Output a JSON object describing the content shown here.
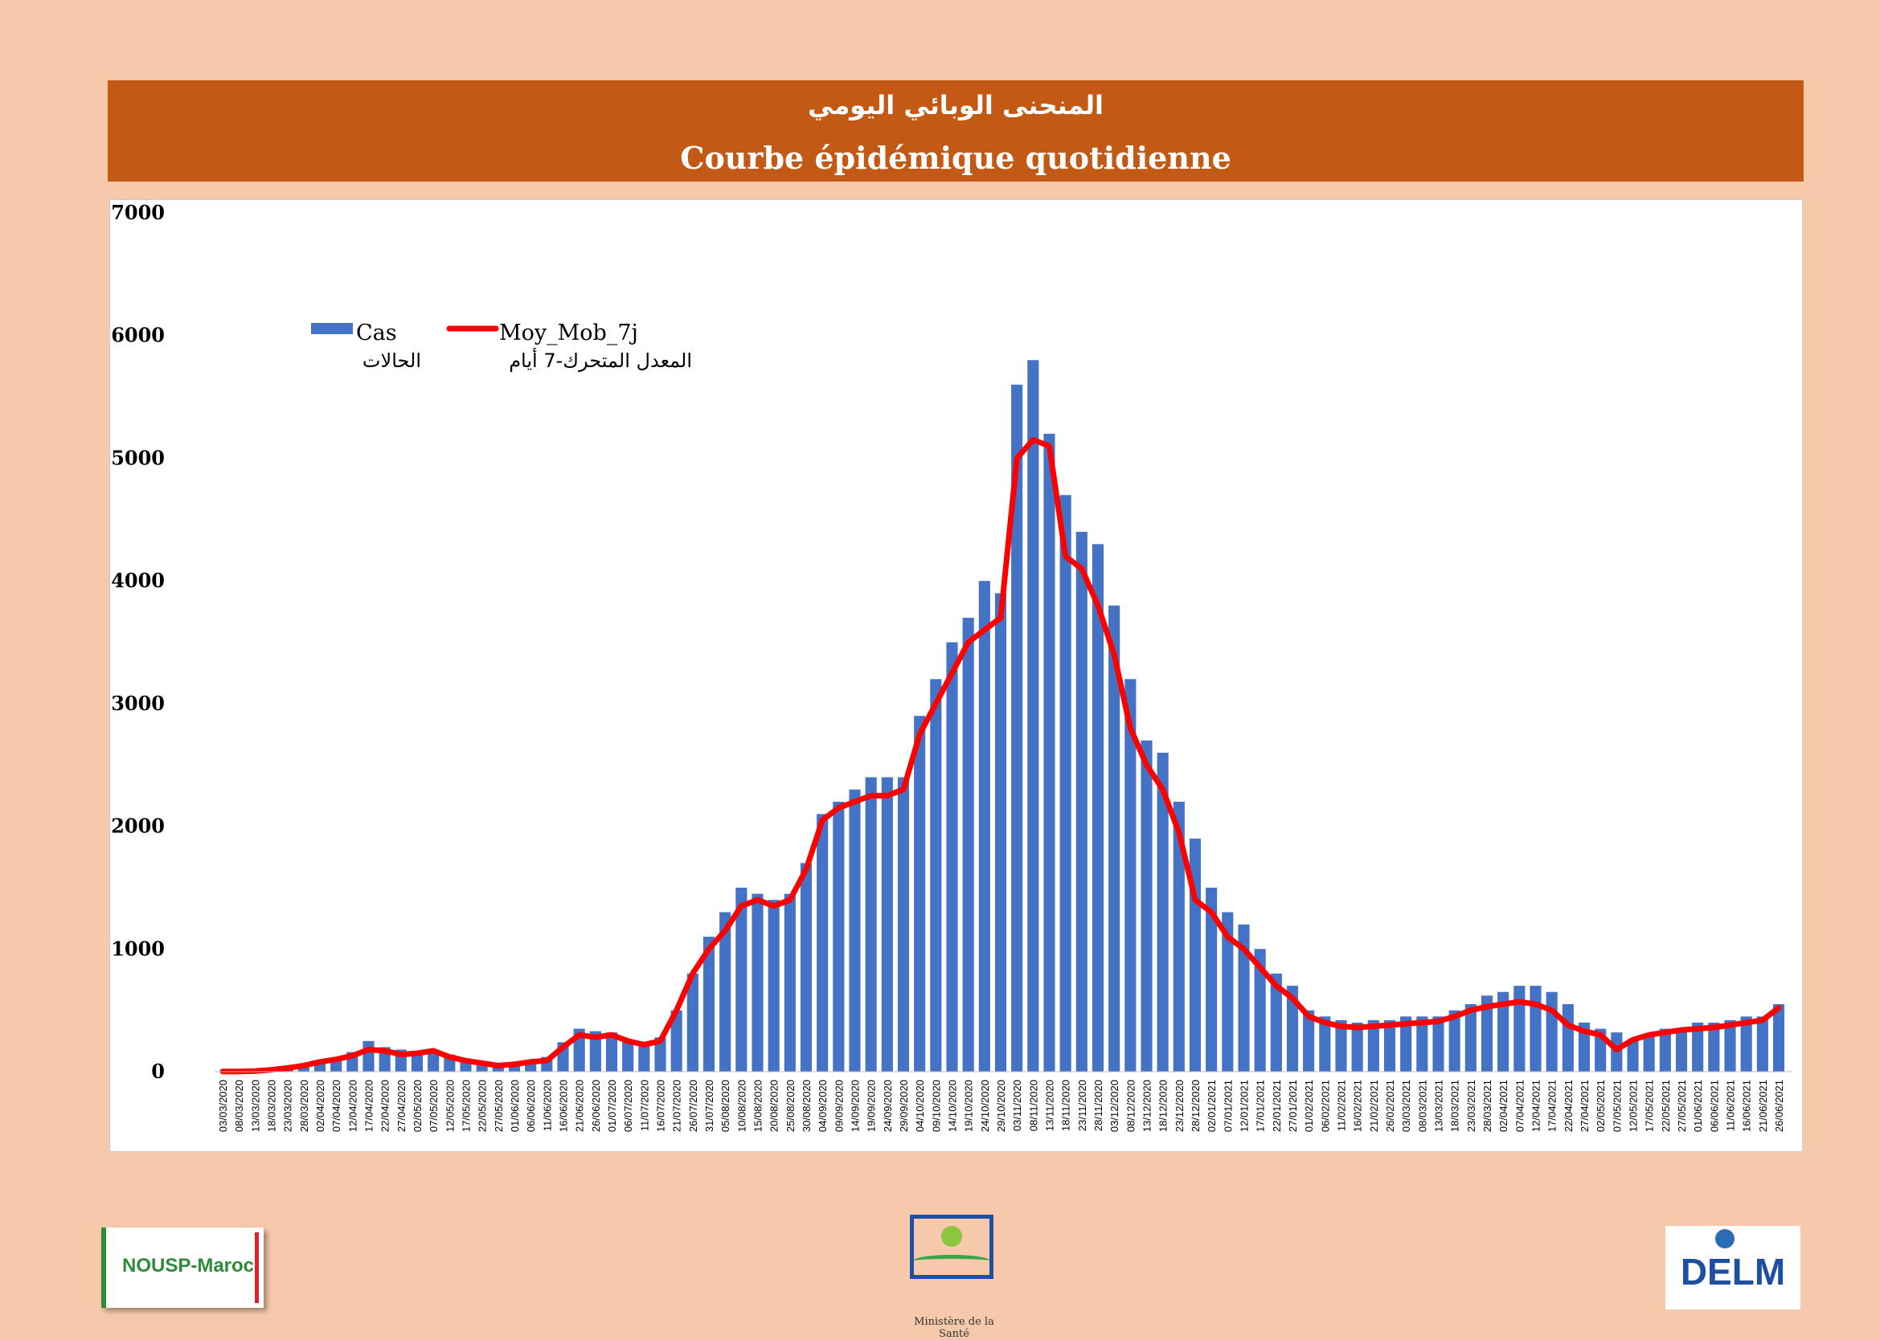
{
  "banner": {
    "title_ar": "المنحنى الوبائي اليومي",
    "title_fr": "Courbe épidémique quotidienne"
  },
  "footer": {
    "left_logo_text": "NOUSP-Maroc",
    "center_logo_caption": "Ministère de la Santé",
    "right_logo_text": "DELM"
  },
  "colors": {
    "background": "#f6c9ab",
    "banner": "#c25914",
    "bars": "#4472c4",
    "moving_average": "#ff0000"
  },
  "chart_data": {
    "type": "bar",
    "title": "",
    "xlabel": "",
    "ylabel": "",
    "ylim": [
      0,
      7000
    ],
    "yticks": [
      0,
      1000,
      2000,
      3000,
      4000,
      5000,
      6000,
      7000
    ],
    "grid": false,
    "legend_placement": "top-left",
    "x_start": "03/03/2020",
    "x_tick_labels": [
      "03/03/2020",
      "08/03/2020",
      "13/03/2020",
      "18/03/2020",
      "23/03/2020",
      "28/03/2020",
      "02/04/2020",
      "07/04/2020",
      "12/04/2020",
      "17/04/2020",
      "22/04/2020",
      "27/04/2020",
      "02/05/2020",
      "07/05/2020",
      "12/05/2020",
      "17/05/2020",
      "22/05/2020",
      "27/05/2020",
      "01/06/2020",
      "06/06/2020",
      "11/06/2020",
      "16/06/2020",
      "21/06/2020",
      "26/06/2020",
      "01/07/2020",
      "06/07/2020",
      "11/07/2020",
      "16/07/2020",
      "21/07/2020",
      "26/07/2020",
      "31/07/2020",
      "05/08/2020",
      "10/08/2020",
      "15/08/2020",
      "20/08/2020",
      "25/08/2020",
      "30/08/2020",
      "04/09/2020",
      "09/09/2020",
      "14/09/2020",
      "19/09/2020",
      "24/09/2020",
      "29/09/2020",
      "04/10/2020",
      "09/10/2020",
      "14/10/2020",
      "19/10/2020",
      "24/10/2020",
      "29/10/2020",
      "03/11/2020",
      "08/11/2020",
      "13/11/2020",
      "18/11/2020",
      "23/11/2020",
      "28/11/2020",
      "03/12/2020",
      "08/12/2020",
      "13/12/2020",
      "18/12/2020",
      "23/12/2020",
      "28/12/2020",
      "02/01/2021",
      "07/01/2021",
      "12/01/2021",
      "17/01/2021",
      "22/01/2021",
      "27/01/2021",
      "01/02/2021",
      "06/02/2021",
      "11/02/2021",
      "16/02/2021",
      "21/02/2021",
      "26/02/2021",
      "03/03/2021",
      "08/03/2021",
      "13/03/2021",
      "18/03/2021",
      "23/03/2021",
      "28/03/2021",
      "02/04/2021",
      "07/04/2021",
      "12/04/2021",
      "17/04/2021",
      "22/04/2021",
      "27/04/2021",
      "02/05/2021",
      "07/05/2021",
      "12/05/2021",
      "17/05/2021",
      "22/05/2021",
      "27/05/2021",
      "01/06/2021",
      "06/06/2021",
      "11/06/2021",
      "16/06/2021",
      "21/06/2021",
      "26/06/2021"
    ],
    "series": [
      {
        "name": "Cas",
        "name_ar": "الحالات",
        "kind": "bar",
        "points_every_5_days": [
          2,
          2,
          6,
          20,
          40,
          60,
          90,
          110,
          160,
          250,
          200,
          180,
          170,
          180,
          140,
          100,
          80,
          60,
          70,
          90,
          120,
          240,
          350,
          330,
          320,
          250,
          230,
          280,
          500,
          800,
          1100,
          1300,
          1500,
          1450,
          1400,
          1450,
          1700,
          2100,
          2200,
          2300,
          2400,
          2400,
          2400,
          2900,
          3200,
          3500,
          3700,
          4000,
          3900,
          5600,
          5800,
          5200,
          4700,
          4400,
          4300,
          3800,
          3200,
          2700,
          2600,
          2200,
          1900,
          1500,
          1300,
          1200,
          1000,
          800,
          700,
          500,
          450,
          420,
          400,
          420,
          420,
          450,
          450,
          450,
          500,
          550,
          620,
          650,
          700,
          700,
          650,
          550,
          400,
          350,
          320,
          250,
          300,
          350,
          350,
          400,
          400,
          420,
          450,
          450,
          550
        ]
      },
      {
        "name": "Moy_Mob_7j",
        "name_ar": "المعدل المتحرك-7 أيام",
        "kind": "line",
        "points_every_5_days": [
          2,
          2,
          5,
          15,
          30,
          50,
          80,
          100,
          130,
          180,
          170,
          140,
          150,
          170,
          120,
          90,
          70,
          50,
          60,
          80,
          90,
          200,
          300,
          280,
          300,
          250,
          220,
          250,
          500,
          800,
          1000,
          1150,
          1350,
          1400,
          1350,
          1400,
          1650,
          2050,
          2150,
          2200,
          2250,
          2250,
          2300,
          2750,
          3000,
          3250,
          3500,
          3600,
          3700,
          5000,
          5150,
          5100,
          4200,
          4100,
          3800,
          3400,
          2800,
          2500,
          2300,
          1950,
          1400,
          1300,
          1100,
          1000,
          850,
          700,
          600,
          450,
          400,
          370,
          360,
          370,
          380,
          390,
          400,
          410,
          450,
          500,
          530,
          550,
          570,
          550,
          500,
          380,
          330,
          300,
          180,
          260,
          300,
          320,
          340,
          350,
          360,
          380,
          400,
          420,
          520
        ]
      }
    ]
  }
}
